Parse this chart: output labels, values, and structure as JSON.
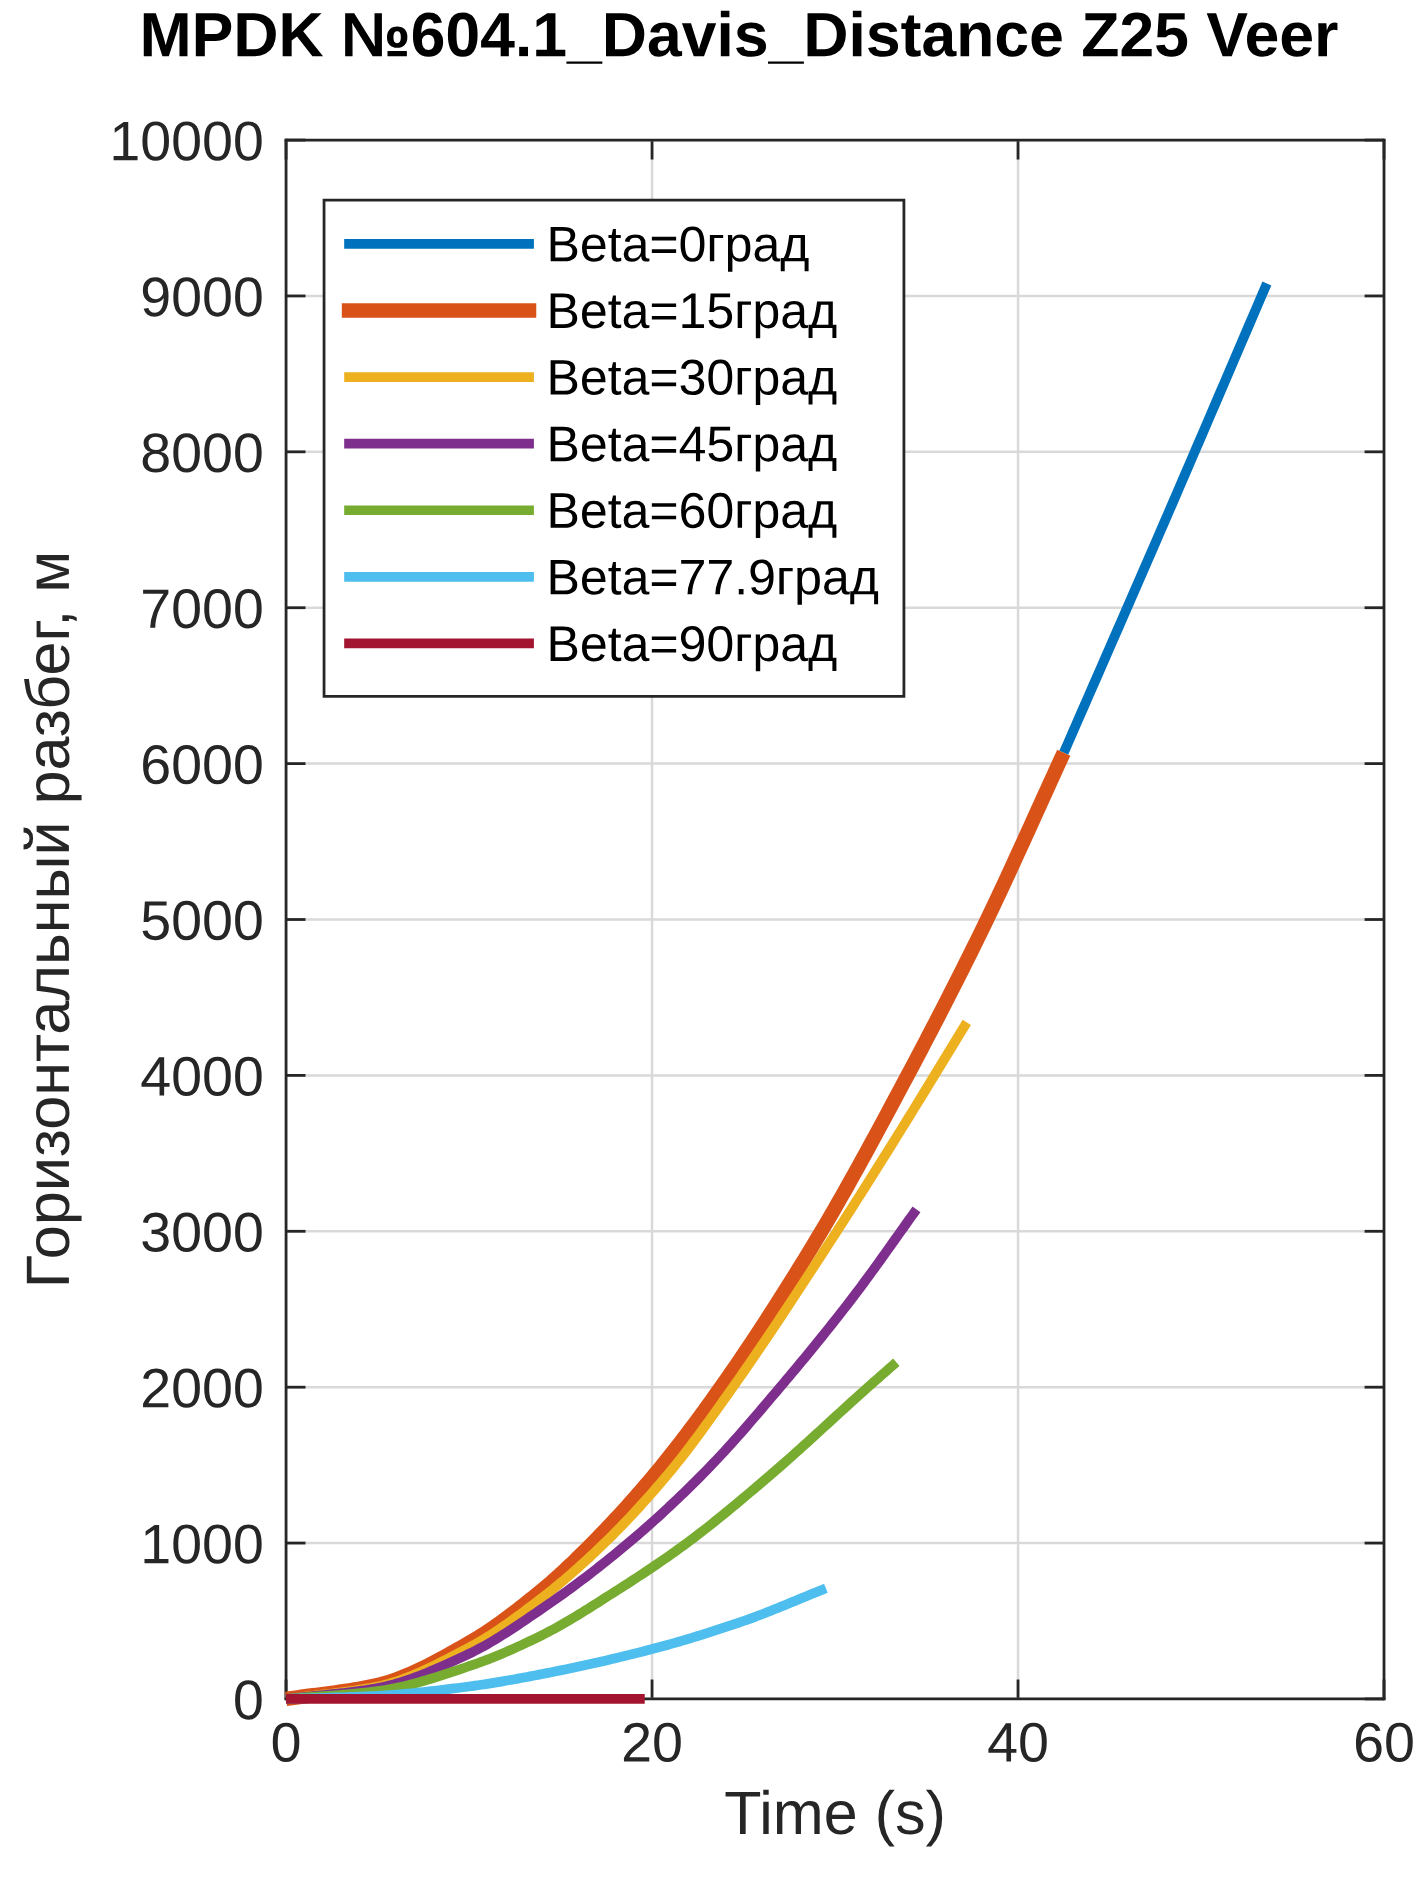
{
  "chart_data": {
    "type": "line",
    "title": "MPDK №604.1_Davis_Distance Z25 Veer",
    "xlabel": "Time (s)",
    "ylabel": "Горизонтальный разбег, м",
    "xlim": [
      0,
      60
    ],
    "ylim": [
      0,
      10000
    ],
    "xticks": [
      0,
      20,
      40,
      60
    ],
    "yticks": [
      0,
      1000,
      2000,
      3000,
      4000,
      5000,
      6000,
      7000,
      8000,
      9000,
      10000
    ],
    "grid": true,
    "legend": "top left",
    "line_style": "solid",
    "series": [
      {
        "name": "Beta=0град",
        "color": "#0072bd",
        "x": [
          42.5,
          48,
          53.6
        ],
        "values": [
          6070,
          7550,
          9080
        ]
      },
      {
        "name": "Beta=15град",
        "color": "#d95319",
        "x": [
          0,
          5,
          10,
          14,
          16.4,
          20,
          23.4,
          29.0,
          33.6,
          38.1,
          42.5
        ],
        "values": [
          0,
          90,
          360,
          700,
          960,
          1420,
          1940,
          2950,
          3920,
          4950,
          6070
        ]
      },
      {
        "name": "Beta=30град",
        "color": "#edb120",
        "x": [
          0,
          5,
          10,
          14,
          17.4,
          21,
          24.3,
          30.1,
          33.6,
          37.2
        ],
        "values": [
          0,
          80,
          330,
          650,
          1000,
          1460,
          1980,
          3000,
          3650,
          4340
        ]
      },
      {
        "name": "Beta=45град",
        "color": "#7e2f8e",
        "x": [
          0,
          5,
          10,
          14,
          18.7,
          23,
          27,
          31,
          34.45
        ],
        "values": [
          0,
          70,
          290,
          580,
          1000,
          1470,
          2000,
          2580,
          3140
        ]
      },
      {
        "name": "Beta=60град",
        "color": "#77ac30",
        "x": [
          0,
          5,
          10,
          14,
          18,
          21.9,
          26.5,
          31.8,
          33.35
        ],
        "values": [
          0,
          50,
          210,
          410,
          690,
          1000,
          1440,
          2000,
          2160
        ]
      },
      {
        "name": "Beta=77.9град",
        "color": "#4dbeee",
        "x": [
          0,
          5,
          10,
          14,
          20,
          25,
          29.5
        ],
        "values": [
          0,
          20,
          80,
          160,
          320,
          500,
          710
        ]
      },
      {
        "name": "Beta=90град",
        "color": "#a2142f",
        "x": [
          0,
          19.6
        ],
        "values": [
          0,
          0
        ]
      }
    ]
  }
}
